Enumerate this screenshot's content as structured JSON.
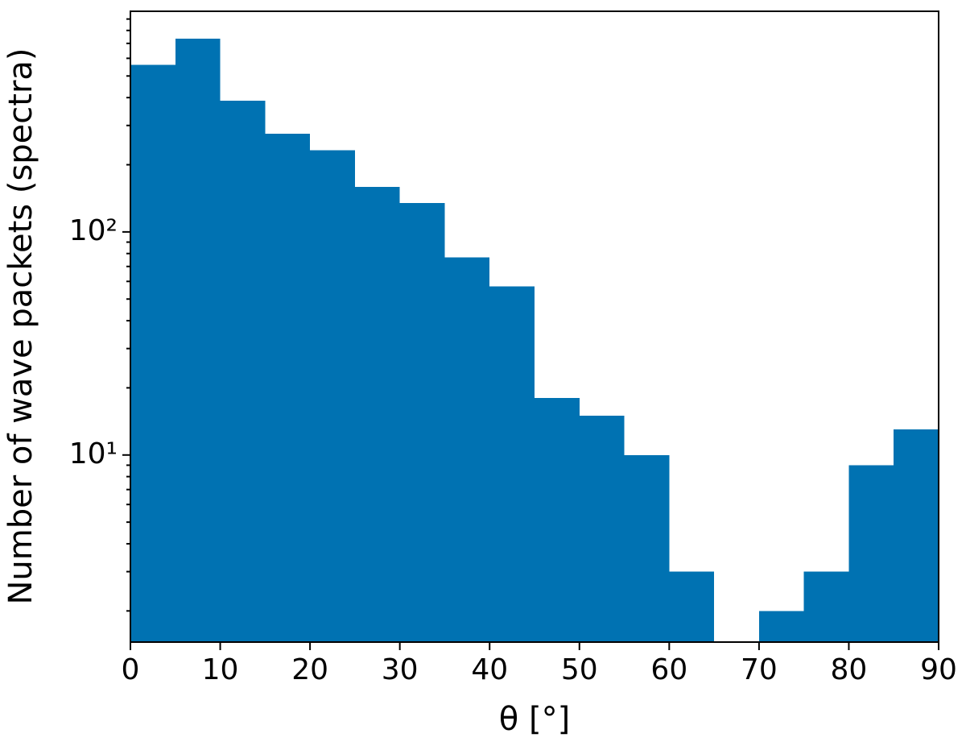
{
  "chart_data": {
    "type": "histogram",
    "x_label": "θ [°]",
    "y_label": "Number of wave packets (spectra)",
    "bins": [
      0,
      5,
      10,
      15,
      20,
      25,
      30,
      35,
      40,
      45,
      50,
      55,
      60,
      65,
      70,
      75,
      80,
      85,
      90
    ],
    "values": [
      560,
      735,
      388,
      276,
      232,
      159,
      135,
      77,
      57,
      18,
      15,
      10,
      3,
      0,
      2,
      3,
      9,
      13
    ],
    "color": "#0072b2",
    "xlim": [
      0,
      90
    ],
    "xticks": [
      0,
      10,
      20,
      30,
      40,
      50,
      60,
      70,
      80,
      90
    ],
    "ylim": [
      1.45,
      975
    ],
    "yscale": "log",
    "yticks": [
      {
        "value": 10,
        "label": "10¹"
      },
      {
        "value": 100,
        "label": "10²"
      }
    ],
    "yminorticks": [
      2,
      3,
      4,
      5,
      6,
      7,
      8,
      9,
      20,
      30,
      40,
      50,
      60,
      70,
      80,
      90,
      200,
      300,
      400,
      500,
      600,
      700,
      800,
      900
    ]
  }
}
